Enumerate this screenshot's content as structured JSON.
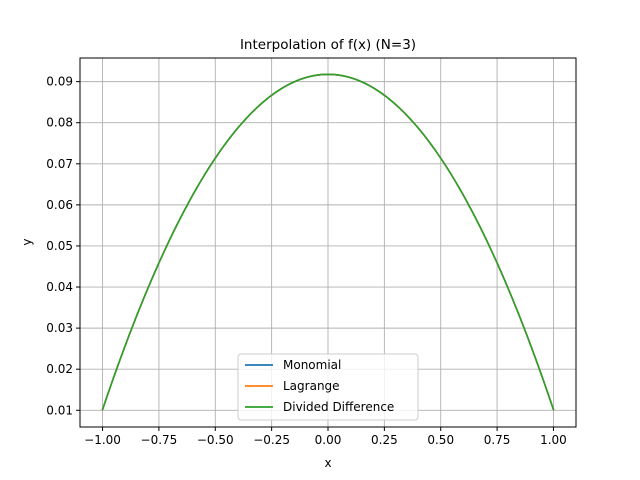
{
  "chart_data": {
    "type": "line",
    "title": "Interpolation of f(x) (N=3)",
    "xlabel": "x",
    "ylabel": "y",
    "xlim": [
      -1.1,
      1.1
    ],
    "ylim": [
      0.00593,
      0.09575
    ],
    "grid": true,
    "legend_position": "lower-center",
    "x_ticks": [
      -1.0,
      -0.75,
      -0.5,
      -0.25,
      0.0,
      0.25,
      0.5,
      0.75,
      1.0
    ],
    "x_tick_labels": [
      "−1.00",
      "−0.75",
      "−0.50",
      "−0.25",
      "0.00",
      "0.25",
      "0.50",
      "0.75",
      "1.00"
    ],
    "y_ticks": [
      0.01,
      0.02,
      0.03,
      0.04,
      0.05,
      0.06,
      0.07,
      0.08,
      0.09
    ],
    "y_tick_labels": [
      "0.01",
      "0.02",
      "0.03",
      "0.04",
      "0.05",
      "0.06",
      "0.07",
      "0.08",
      "0.09"
    ],
    "x": [
      -1.0,
      -0.75,
      -0.5,
      -0.25,
      0.0,
      0.25,
      0.5,
      0.75,
      1.0
    ],
    "series": [
      {
        "name": "Monomial",
        "color": "#1f77b4",
        "values": [
          0.0099,
          0.0464,
          0.0712,
          0.0866,
          0.0917,
          0.0866,
          0.0712,
          0.0464,
          0.0099
        ]
      },
      {
        "name": "Lagrange",
        "color": "#ff7f0e",
        "values": [
          0.0099,
          0.0464,
          0.0712,
          0.0866,
          0.0917,
          0.0866,
          0.0712,
          0.0464,
          0.0099
        ]
      },
      {
        "name": "Divided Difference",
        "color": "#2ca02c",
        "values": [
          0.0099,
          0.0464,
          0.0712,
          0.0866,
          0.0917,
          0.0866,
          0.0712,
          0.0464,
          0.0099
        ]
      }
    ]
  }
}
